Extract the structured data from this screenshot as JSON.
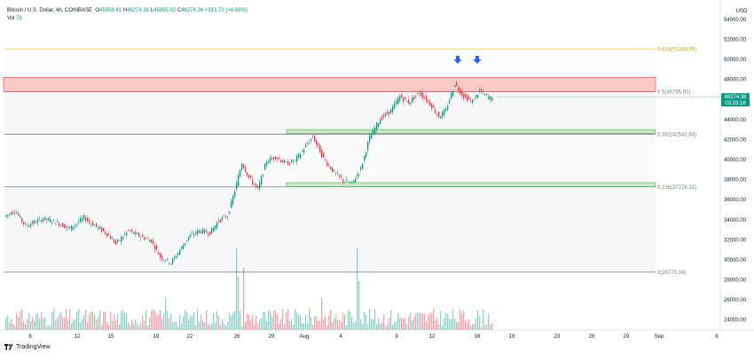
{
  "header": {
    "symbol": "Bitcoin / U.S. Dollar, 4h, COINBASE",
    "o_label": "O",
    "o": "45958.41",
    "h_label": "H",
    "h": "46274.36",
    "l_label": "L",
    "l": "45895.82",
    "c_label": "C",
    "c": "46274.36",
    "change": "+315.72 (+0.69%)",
    "vol_label": "Vol",
    "vol": "78"
  },
  "currency": "USD",
  "price_tag": {
    "price": "46274.36",
    "countdown": "03:33:16"
  },
  "branding": "TradingView",
  "colors": {
    "up": "#089981",
    "down": "#f23645",
    "resistance_fill": "#f9c2bc",
    "resistance_stroke": "#f23645",
    "support_fill": "#c8e6c9",
    "support_stroke": "#4caf50",
    "fib_618": "#f5c542",
    "fib_line": "#787b86",
    "arrow": "#2962ff"
  },
  "chart_data": {
    "type": "candlestick",
    "ylim": [
      23000,
      55500
    ],
    "y_ticks": [
      24000,
      26000,
      28000,
      30000,
      32000,
      34000,
      36000,
      38000,
      40000,
      42000,
      44000,
      46000,
      48000,
      50000,
      52000,
      54000
    ],
    "x_ticks": [
      "8",
      "12",
      "15",
      "19",
      "22",
      "26",
      "29",
      "Aug",
      "4",
      "9",
      "12",
      "16",
      "19",
      "23",
      "26",
      "29",
      "Sep",
      "6"
    ],
    "fib_levels": [
      {
        "label": "0.618(51049.99)",
        "price": 51049.99
      },
      {
        "label": "0.5(46795.91)",
        "price": 46795.91
      },
      {
        "label": "0.382(42541.84)",
        "price": 42541.84
      },
      {
        "label": "0.236(37278.31)",
        "price": 37278.31
      },
      {
        "label": "0(28770.16)",
        "price": 28770.16
      }
    ],
    "zones": [
      {
        "type": "resistance",
        "low": 46800,
        "high": 48200
      },
      {
        "type": "support",
        "low": 42600,
        "high": 43000
      },
      {
        "type": "support",
        "low": 37300,
        "high": 37700
      }
    ],
    "candle_anchors": [
      [
        0,
        34300
      ],
      [
        6,
        34900
      ],
      [
        12,
        33400
      ],
      [
        22,
        34100
      ],
      [
        30,
        33700
      ],
      [
        37,
        33100
      ],
      [
        45,
        34200
      ],
      [
        52,
        33300
      ],
      [
        58,
        32600
      ],
      [
        63,
        31600
      ],
      [
        70,
        32900
      ],
      [
        76,
        32400
      ],
      [
        83,
        31900
      ],
      [
        88,
        30300
      ],
      [
        94,
        29700
      ],
      [
        98,
        30700
      ],
      [
        104,
        32300
      ],
      [
        110,
        32900
      ],
      [
        116,
        32700
      ],
      [
        121,
        33900
      ],
      [
        126,
        34400
      ],
      [
        130,
        36900
      ],
      [
        134,
        39700
      ],
      [
        138,
        38200
      ],
      [
        143,
        37000
      ],
      [
        148,
        39900
      ],
      [
        153,
        40300
      ],
      [
        159,
        39600
      ],
      [
        164,
        39900
      ],
      [
        169,
        41100
      ],
      [
        174,
        42300
      ],
      [
        180,
        40100
      ],
      [
        186,
        38700
      ],
      [
        191,
        37900
      ],
      [
        196,
        37600
      ],
      [
        201,
        39100
      ],
      [
        206,
        42200
      ],
      [
        212,
        44100
      ],
      [
        218,
        44900
      ],
      [
        223,
        46300
      ],
      [
        228,
        45700
      ],
      [
        234,
        46700
      ],
      [
        240,
        45600
      ],
      [
        245,
        44300
      ],
      [
        249,
        44900
      ],
      [
        254,
        47600
      ],
      [
        259,
        46300
      ],
      [
        264,
        45800
      ],
      [
        268,
        46900
      ],
      [
        272,
        46300
      ],
      [
        275,
        46100
      ]
    ],
    "volume_scale_note": "Vol"
  }
}
